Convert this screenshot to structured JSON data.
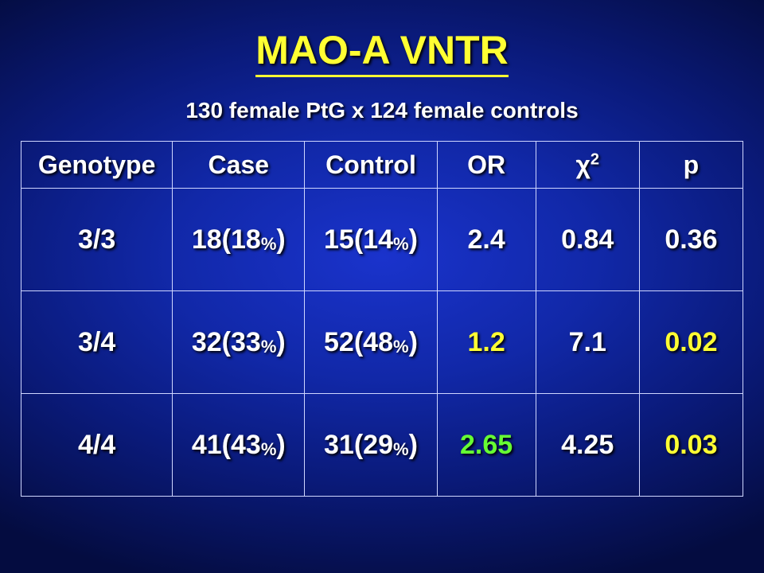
{
  "title": "MAO-A VNTR",
  "subtitle": "130 female PtG x 124 female controls",
  "columns": {
    "genotype": "Genotype",
    "case": "Case",
    "control": "Control",
    "or": "OR",
    "chi": "χ",
    "chi_sup": "2",
    "p": "p"
  },
  "rows": [
    {
      "genotype": "3/3",
      "case_n": "18",
      "case_pct": "18",
      "ctrl_n": "15",
      "ctrl_pct": "14",
      "or": "2.4",
      "or_class": "",
      "chi": "0.84",
      "p": "0.36",
      "p_class": ""
    },
    {
      "genotype": "3/4",
      "case_n": "32",
      "case_pct": "33",
      "ctrl_n": "52",
      "ctrl_pct": "48",
      "or": "1.2",
      "or_class": "yellow",
      "chi": "7.1",
      "p": "0.02",
      "p_class": "yellow"
    },
    {
      "genotype": "4/4",
      "case_n": "41",
      "case_pct": "43",
      "ctrl_n": "31",
      "ctrl_pct": "29",
      "or": "2.65",
      "or_class": "lime",
      "chi": "4.25",
      "p": "0.03",
      "p_class": "yellow"
    }
  ],
  "colors": {
    "title": "#ffff33",
    "text": "#ffffff",
    "yellow": "#ffff33",
    "lime": "#66ff33",
    "border": "#cfd6ff"
  }
}
